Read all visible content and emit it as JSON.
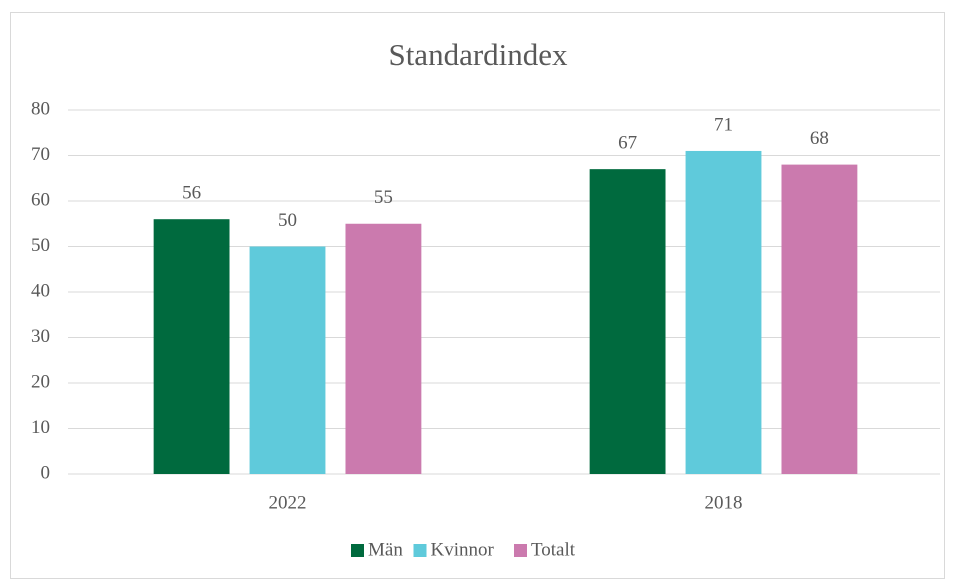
{
  "chart_data": {
    "type": "bar",
    "title": "Standardindex",
    "categories": [
      "2022",
      "2018"
    ],
    "series": [
      {
        "name": "Män",
        "color": "#006a3e",
        "values": [
          56,
          67
        ]
      },
      {
        "name": "Kvinnor",
        "color": "#5fcadb",
        "values": [
          50,
          71
        ]
      },
      {
        "name": "Totalt",
        "color": "#cb7aae",
        "values": [
          55,
          68
        ]
      }
    ],
    "ylim": [
      0,
      80
    ],
    "yticks": [
      0,
      10,
      20,
      30,
      40,
      50,
      60,
      70,
      80
    ],
    "grid": true,
    "legend": "bottom"
  }
}
